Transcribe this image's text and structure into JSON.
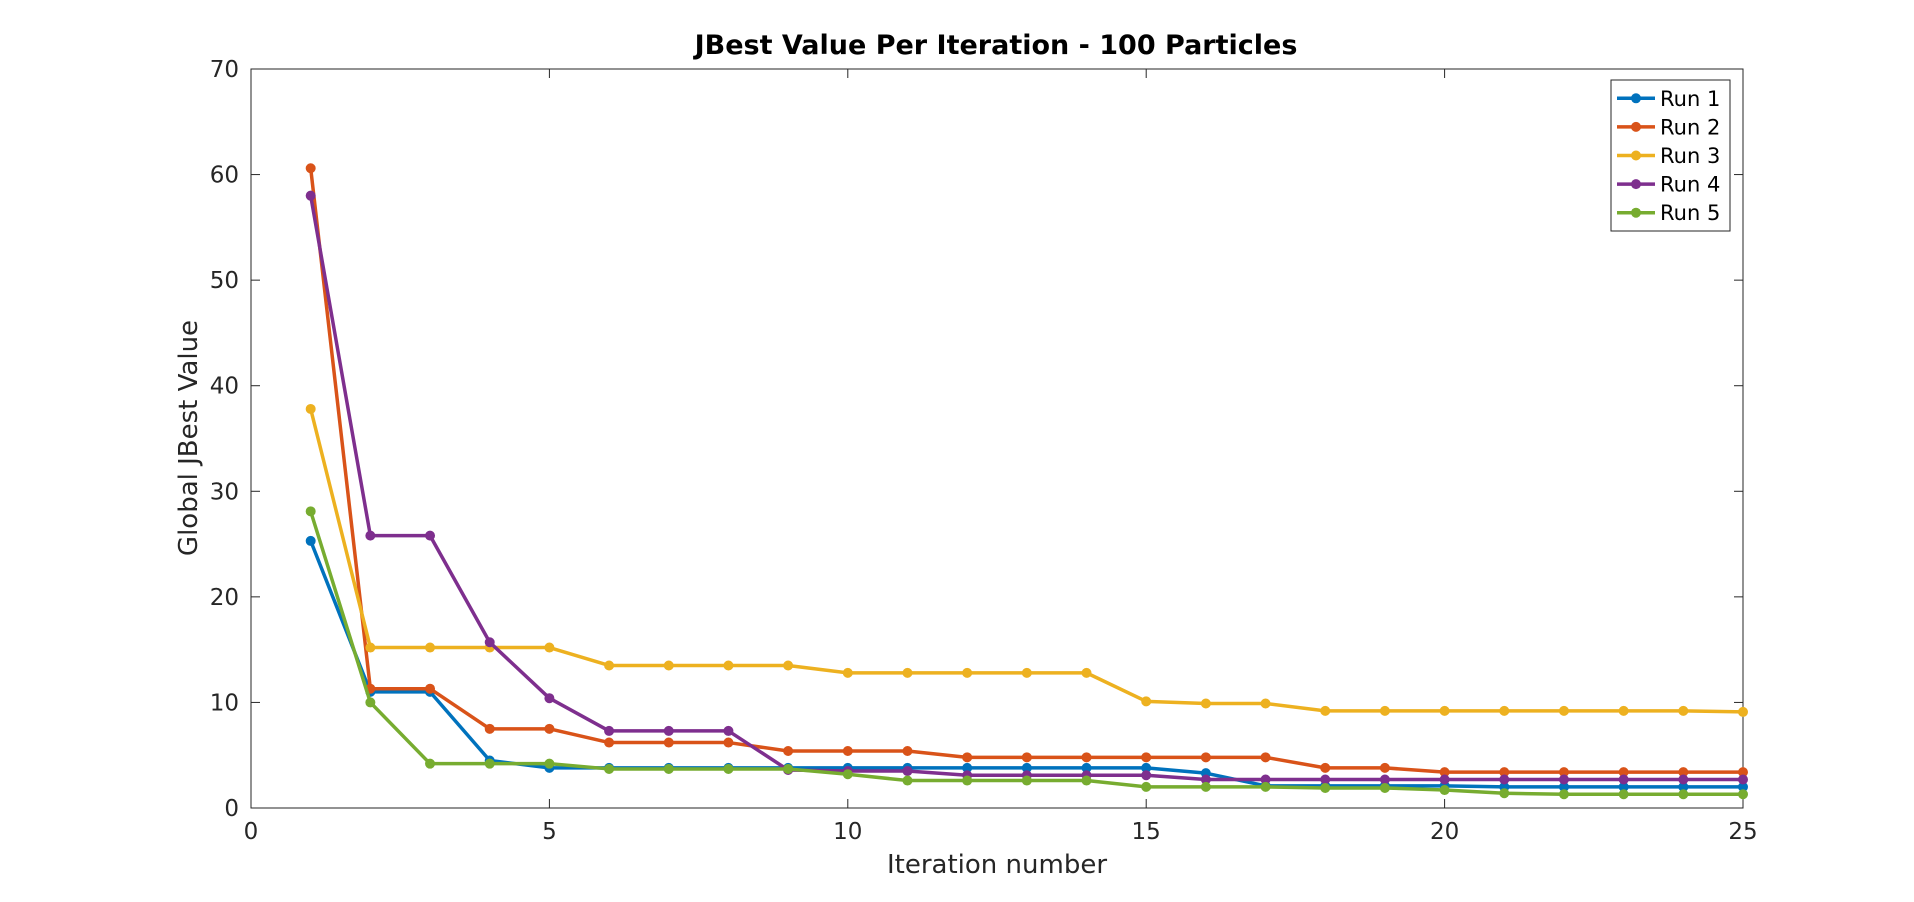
{
  "chart_data": {
    "type": "line",
    "title": "JBest Value Per Iteration - 100 Particles",
    "xlabel": "Iteration number",
    "ylabel": "Global JBest Value",
    "xlim": [
      0,
      25
    ],
    "ylim": [
      0,
      70
    ],
    "xticks": [
      0,
      5,
      10,
      15,
      20,
      25
    ],
    "yticks": [
      0,
      10,
      20,
      30,
      40,
      50,
      60,
      70
    ],
    "grid": false,
    "legend_position": "top-right",
    "x": [
      1,
      2,
      3,
      4,
      5,
      6,
      7,
      8,
      9,
      10,
      11,
      12,
      13,
      14,
      15,
      16,
      17,
      18,
      19,
      20,
      21,
      22,
      23,
      24,
      25
    ],
    "series": [
      {
        "name": "Run 1",
        "color": "#0072BD",
        "values": [
          25.3,
          11.0,
          11.0,
          4.5,
          3.8,
          3.8,
          3.8,
          3.8,
          3.8,
          3.8,
          3.8,
          3.8,
          3.8,
          3.8,
          3.8,
          3.3,
          2.1,
          2.1,
          2.1,
          2.1,
          2.0,
          2.0,
          2.0,
          2.0,
          2.0
        ]
      },
      {
        "name": "Run 2",
        "color": "#D95319",
        "values": [
          60.6,
          11.3,
          11.3,
          7.5,
          7.5,
          6.2,
          6.2,
          6.2,
          5.4,
          5.4,
          5.4,
          4.8,
          4.8,
          4.8,
          4.8,
          4.8,
          4.8,
          3.8,
          3.8,
          3.4,
          3.4,
          3.4,
          3.4,
          3.4,
          3.4
        ]
      },
      {
        "name": "Run 3",
        "color": "#EDB120",
        "values": [
          37.8,
          15.2,
          15.2,
          15.2,
          15.2,
          13.5,
          13.5,
          13.5,
          13.5,
          12.8,
          12.8,
          12.8,
          12.8,
          12.8,
          10.1,
          9.9,
          9.9,
          9.2,
          9.2,
          9.2,
          9.2,
          9.2,
          9.2,
          9.2,
          9.1
        ]
      },
      {
        "name": "Run 4",
        "color": "#7E2F8E",
        "values": [
          58.0,
          25.8,
          25.8,
          15.7,
          10.4,
          7.3,
          7.3,
          7.3,
          3.6,
          3.5,
          3.5,
          3.1,
          3.1,
          3.1,
          3.1,
          2.7,
          2.7,
          2.7,
          2.7,
          2.7,
          2.7,
          2.7,
          2.7,
          2.7,
          2.7
        ]
      },
      {
        "name": "Run 5",
        "color": "#77AC30",
        "values": [
          28.1,
          10.0,
          4.2,
          4.2,
          4.2,
          3.7,
          3.7,
          3.7,
          3.7,
          3.2,
          2.6,
          2.6,
          2.6,
          2.6,
          2.0,
          2.0,
          2.0,
          1.9,
          1.9,
          1.7,
          1.4,
          1.3,
          1.3,
          1.3,
          1.3
        ]
      }
    ]
  }
}
